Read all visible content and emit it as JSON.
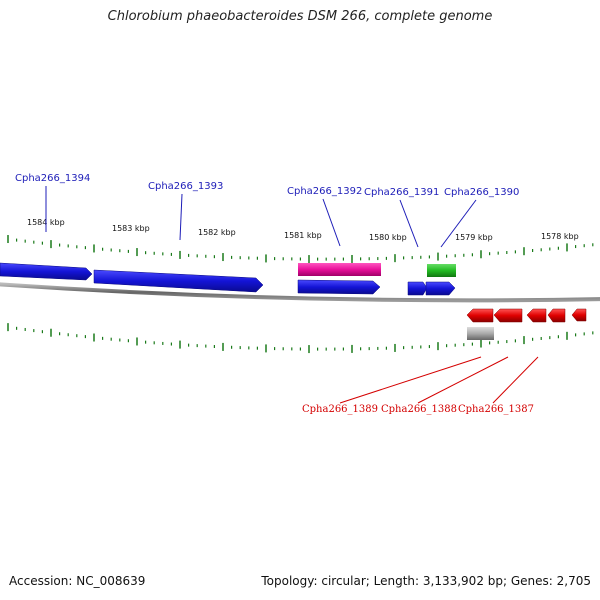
{
  "title": "Chlorobium phaeobacteroides DSM 266, complete genome",
  "footer": {
    "accession": "Accession: NC_008639",
    "summary": "Topology: circular; Length: 3,133,902 bp; Genes: 2,705"
  },
  "scale_labels": [
    "1584 kbp",
    "1583 kbp",
    "1582 kbp",
    "1581 kbp",
    "1580 kbp",
    "1579 kbp",
    "1578 kbp"
  ],
  "gene_labels": {
    "forward": [
      "Cpha266_1394",
      "Cpha266_1393",
      "Cpha266_1392",
      "Cpha266_1391",
      "Cpha266_1390"
    ],
    "reverse": [
      "Cpha266_1389",
      "Cpha266_1388",
      "Cpha266_1387"
    ]
  },
  "colors": {
    "forward_gene": "#1414d6",
    "highlight_gene": "#e8109a",
    "green_gene": "#22bb22",
    "reverse_gene": "#e00000",
    "grey_gene": "#aaaaaa",
    "backbone": "#777777",
    "tick": "#1a7a1a",
    "label_blue": "#1d1db8",
    "label_red": "#d40000"
  }
}
